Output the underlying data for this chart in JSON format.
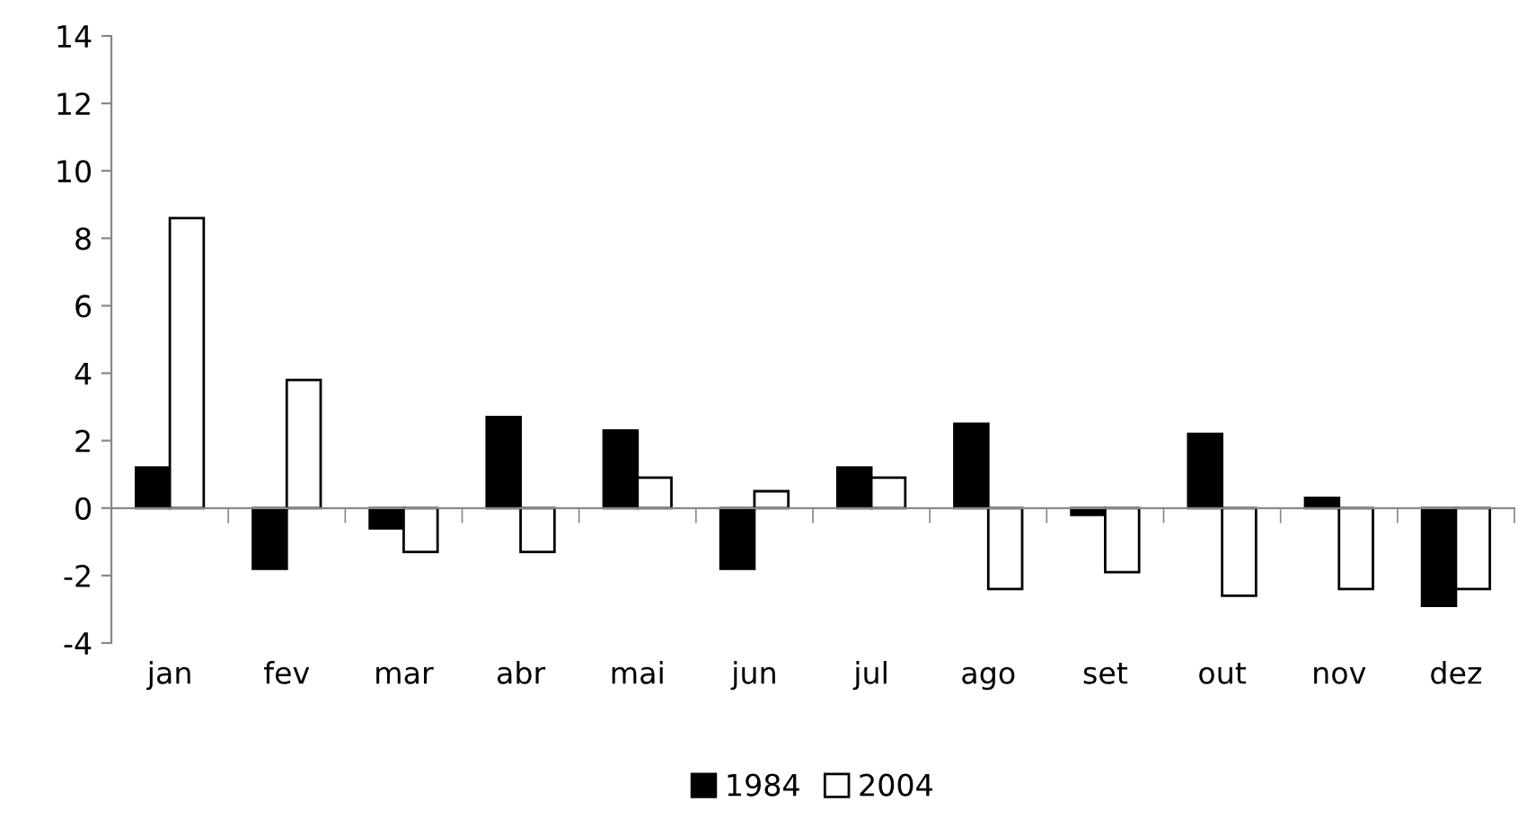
{
  "chart_data": {
    "type": "bar",
    "categories": [
      "jan",
      "fev",
      "mar",
      "abr",
      "mai",
      "jun",
      "jul",
      "ago",
      "set",
      "out",
      "nov",
      "dez"
    ],
    "series": [
      {
        "name": "1984",
        "color": "#000000",
        "values": [
          1.2,
          -1.8,
          -0.6,
          2.7,
          2.3,
          -1.8,
          1.2,
          2.5,
          -0.2,
          2.2,
          0.3,
          -2.9
        ]
      },
      {
        "name": "2004",
        "color": "#ffffff",
        "values": [
          8.6,
          3.8,
          -1.3,
          -1.3,
          0.9,
          0.5,
          0.9,
          -2.4,
          -1.9,
          -2.6,
          -2.4,
          -2.4
        ]
      }
    ],
    "ylim": [
      -4,
      14
    ],
    "yticks": [
      -4,
      -2,
      0,
      2,
      4,
      6,
      8,
      10,
      12,
      14
    ],
    "legend": "bottom"
  }
}
